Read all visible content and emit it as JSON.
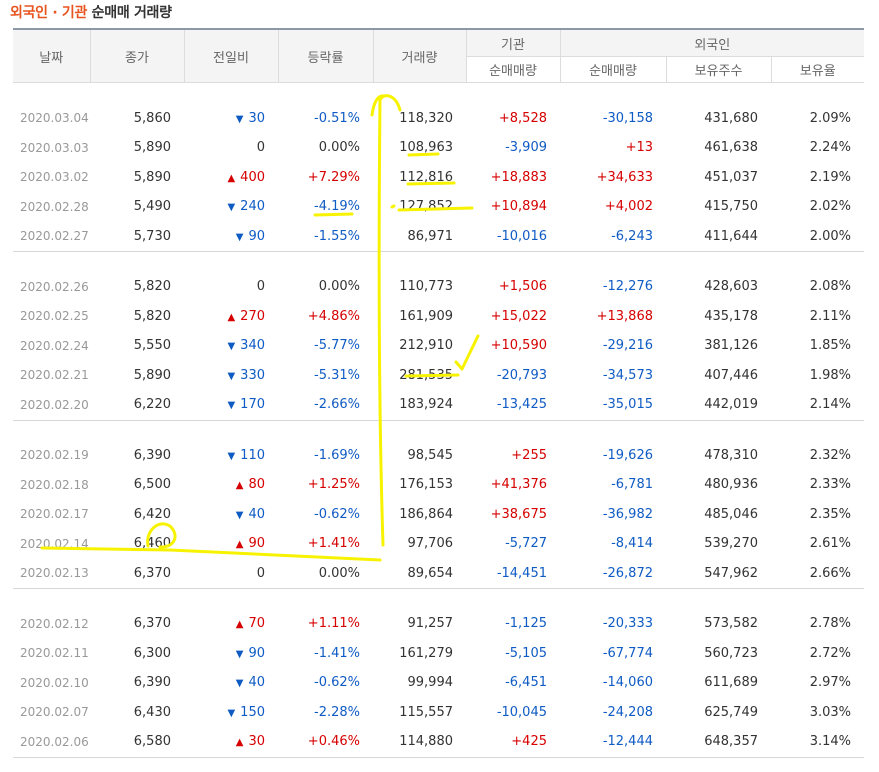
{
  "header": {
    "title_part1": "외국인 · 기관",
    "title_part2": "순매매 거래량"
  },
  "columns": {
    "date": "날짜",
    "close": "종가",
    "change": "전일비",
    "rate": "등락률",
    "volume": "거래량",
    "institution": "기관",
    "foreign": "외국인",
    "inst_net": "순매매량",
    "foreign_net": "순매매량",
    "foreign_holdings": "보유주수",
    "foreign_ratio": "보유율"
  },
  "groups": [
    [
      {
        "date": "2020.03.04",
        "close": "5,860",
        "dir": "down",
        "change": "30",
        "rate": "-0.51%",
        "volume": "118,320",
        "inst_net": "+8,528",
        "foreign_net": "-30,158",
        "holdings": "431,680",
        "ratio": "2.09%"
      },
      {
        "date": "2020.03.03",
        "close": "5,890",
        "dir": "none",
        "change": "0",
        "rate": "0.00%",
        "volume": "108,963",
        "inst_net": "-3,909",
        "foreign_net": "+13",
        "holdings": "461,638",
        "ratio": "2.24%"
      },
      {
        "date": "2020.03.02",
        "close": "5,890",
        "dir": "up",
        "change": "400",
        "rate": "+7.29%",
        "volume": "112,816",
        "inst_net": "+18,883",
        "foreign_net": "+34,633",
        "holdings": "451,037",
        "ratio": "2.19%"
      },
      {
        "date": "2020.02.28",
        "close": "5,490",
        "dir": "down",
        "change": "240",
        "rate": "-4.19%",
        "volume": "127,852",
        "inst_net": "+10,894",
        "foreign_net": "+4,002",
        "holdings": "415,750",
        "ratio": "2.02%"
      },
      {
        "date": "2020.02.27",
        "close": "5,730",
        "dir": "down",
        "change": "90",
        "rate": "-1.55%",
        "volume": "86,971",
        "inst_net": "-10,016",
        "foreign_net": "-6,243",
        "holdings": "411,644",
        "ratio": "2.00%"
      }
    ],
    [
      {
        "date": "2020.02.26",
        "close": "5,820",
        "dir": "none",
        "change": "0",
        "rate": "0.00%",
        "volume": "110,773",
        "inst_net": "+1,506",
        "foreign_net": "-12,276",
        "holdings": "428,603",
        "ratio": "2.08%"
      },
      {
        "date": "2020.02.25",
        "close": "5,820",
        "dir": "up",
        "change": "270",
        "rate": "+4.86%",
        "volume": "161,909",
        "inst_net": "+15,022",
        "foreign_net": "+13,868",
        "holdings": "435,178",
        "ratio": "2.11%"
      },
      {
        "date": "2020.02.24",
        "close": "5,550",
        "dir": "down",
        "change": "340",
        "rate": "-5.77%",
        "volume": "212,910",
        "inst_net": "+10,590",
        "foreign_net": "-29,216",
        "holdings": "381,126",
        "ratio": "1.85%"
      },
      {
        "date": "2020.02.21",
        "close": "5,890",
        "dir": "down",
        "change": "330",
        "rate": "-5.31%",
        "volume": "281,535",
        "inst_net": "-20,793",
        "foreign_net": "-34,573",
        "holdings": "407,446",
        "ratio": "1.98%"
      },
      {
        "date": "2020.02.20",
        "close": "6,220",
        "dir": "down",
        "change": "170",
        "rate": "-2.66%",
        "volume": "183,924",
        "inst_net": "-13,425",
        "foreign_net": "-35,015",
        "holdings": "442,019",
        "ratio": "2.14%"
      }
    ],
    [
      {
        "date": "2020.02.19",
        "close": "6,390",
        "dir": "down",
        "change": "110",
        "rate": "-1.69%",
        "volume": "98,545",
        "inst_net": "+255",
        "foreign_net": "-19,626",
        "holdings": "478,310",
        "ratio": "2.32%"
      },
      {
        "date": "2020.02.18",
        "close": "6,500",
        "dir": "up",
        "change": "80",
        "rate": "+1.25%",
        "volume": "176,153",
        "inst_net": "+41,376",
        "foreign_net": "-6,781",
        "holdings": "480,936",
        "ratio": "2.33%"
      },
      {
        "date": "2020.02.17",
        "close": "6,420",
        "dir": "down",
        "change": "40",
        "rate": "-0.62%",
        "volume": "186,864",
        "inst_net": "+38,675",
        "foreign_net": "-36,982",
        "holdings": "485,046",
        "ratio": "2.35%"
      },
      {
        "date": "2020.02.14",
        "close": "6,460",
        "dir": "up",
        "change": "90",
        "rate": "+1.41%",
        "volume": "97,706",
        "inst_net": "-5,727",
        "foreign_net": "-8,414",
        "holdings": "539,270",
        "ratio": "2.61%"
      },
      {
        "date": "2020.02.13",
        "close": "6,370",
        "dir": "none",
        "change": "0",
        "rate": "0.00%",
        "volume": "89,654",
        "inst_net": "-14,451",
        "foreign_net": "-26,872",
        "holdings": "547,962",
        "ratio": "2.66%"
      }
    ],
    [
      {
        "date": "2020.02.12",
        "close": "6,370",
        "dir": "up",
        "change": "70",
        "rate": "+1.11%",
        "volume": "91,257",
        "inst_net": "-1,125",
        "foreign_net": "-20,333",
        "holdings": "573,582",
        "ratio": "2.78%"
      },
      {
        "date": "2020.02.11",
        "close": "6,300",
        "dir": "down",
        "change": "90",
        "rate": "-1.41%",
        "volume": "161,279",
        "inst_net": "-5,105",
        "foreign_net": "-67,774",
        "holdings": "560,723",
        "ratio": "2.72%"
      },
      {
        "date": "2020.02.10",
        "close": "6,390",
        "dir": "down",
        "change": "40",
        "rate": "-0.62%",
        "volume": "99,994",
        "inst_net": "-6,451",
        "foreign_net": "-14,060",
        "holdings": "611,689",
        "ratio": "2.97%"
      },
      {
        "date": "2020.02.07",
        "close": "6,430",
        "dir": "down",
        "change": "150",
        "rate": "-2.28%",
        "volume": "115,557",
        "inst_net": "-10,045",
        "foreign_net": "-24,208",
        "holdings": "625,749",
        "ratio": "3.03%"
      },
      {
        "date": "2020.02.06",
        "close": "6,580",
        "dir": "up",
        "change": "30",
        "rate": "+0.46%",
        "volume": "114,880",
        "inst_net": "+425",
        "foreign_net": "-12,444",
        "holdings": "648,357",
        "ratio": "3.14%"
      }
    ]
  ],
  "colors": {
    "up": "#d60000",
    "down": "#0f5bc4",
    "title_accent": "#e8541f",
    "highlighter": "#f7f300"
  },
  "icons": {
    "up": "triangle-up-icon",
    "down": "triangle-down-icon"
  }
}
